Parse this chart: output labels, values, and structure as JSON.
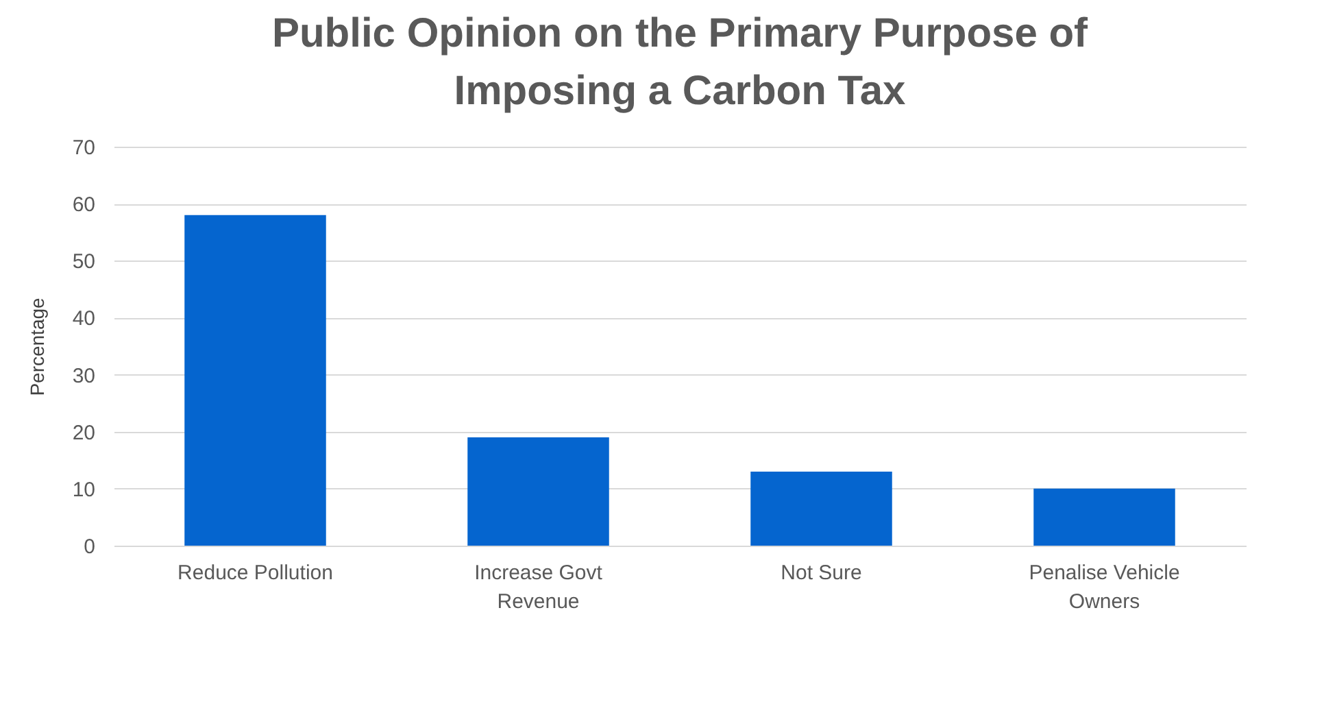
{
  "chart_data": {
    "type": "bar",
    "title": "Public Opinion on the Primary Purpose of Imposing a Carbon Tax",
    "ylabel": "Percentage",
    "categories": [
      "Reduce Pollution",
      "Increase Govt Revenue",
      "Not Sure",
      "Penalise Vehicle Owners"
    ],
    "values": [
      58,
      19,
      13,
      10
    ],
    "color": "#0565cf",
    "ylim": [
      0,
      70
    ],
    "yticks": [
      0,
      10,
      20,
      30,
      40,
      50,
      60,
      70
    ],
    "grid": true
  }
}
